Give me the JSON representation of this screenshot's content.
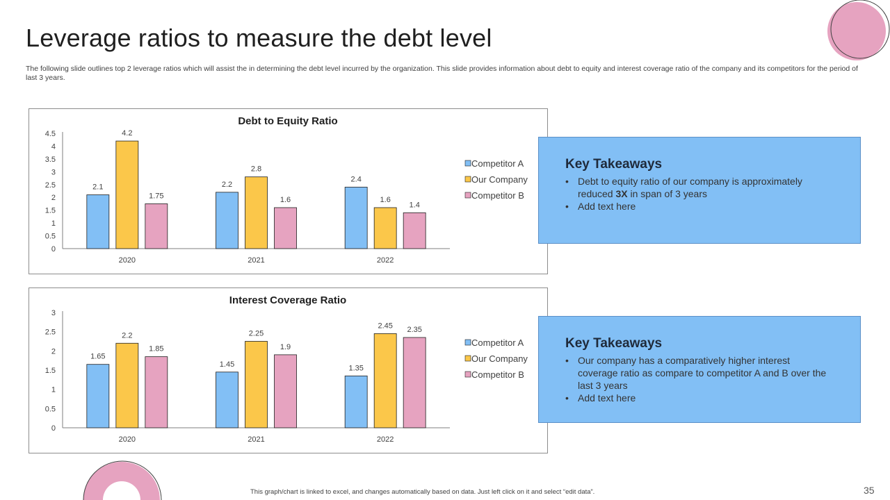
{
  "slide": {
    "title": "Leverage ratios to measure the debt level",
    "subtitle": "The following slide outlines top 2 leverage ratios which will assist the in determining the debt level incurred by the organization. This slide provides information about debt to equity and interest coverage ratio of the company and its competitors for the period of last 3 years.",
    "footer_note": "This graph/chart is linked to excel, and changes automatically based on data. Just left click on it and select “edit data”.",
    "page_number": "35"
  },
  "colors": {
    "competitor_a": "#82bff5",
    "our_company": "#fbc74a",
    "competitor_b": "#e6a3c0",
    "accent_pink": "#e6a3c0",
    "takeaway_bg": "#82bff5"
  },
  "chart_data": [
    {
      "type": "bar",
      "title": "Debt to Equity Ratio",
      "categories": [
        "2020",
        "2021",
        "2022"
      ],
      "series": [
        {
          "name": "Competitor A",
          "values": [
            2.1,
            2.2,
            2.4
          ]
        },
        {
          "name": "Our Company",
          "values": [
            4.2,
            2.8,
            1.6
          ]
        },
        {
          "name": "Competitor B",
          "values": [
            1.75,
            1.6,
            1.4
          ]
        }
      ],
      "ylim": [
        0,
        4.5
      ],
      "yticks": [
        "0",
        "0.5",
        "1",
        "1.5",
        "2",
        "2.5",
        "3",
        "3.5",
        "4",
        "4.5"
      ],
      "value_labels": [
        [
          "2.1",
          "2.2",
          "2.4"
        ],
        [
          "4.2",
          "2.8",
          "1.6"
        ],
        [
          "1.75",
          "1.6",
          "1.4"
        ]
      ],
      "legend": "right",
      "grid": false
    },
    {
      "type": "bar",
      "title": "Interest Coverage Ratio",
      "categories": [
        "2020",
        "2021",
        "2022"
      ],
      "series": [
        {
          "name": "Competitor A",
          "values": [
            1.65,
            1.45,
            1.35
          ]
        },
        {
          "name": "Our Company",
          "values": [
            2.2,
            2.25,
            2.45
          ]
        },
        {
          "name": "Competitor B",
          "values": [
            1.85,
            1.9,
            2.35
          ]
        }
      ],
      "ylim": [
        0,
        3
      ],
      "yticks": [
        "0",
        "0.5",
        "1",
        "1.5",
        "2",
        "2.5",
        "3"
      ],
      "value_labels": [
        [
          "1.65",
          "1.45",
          "1.35"
        ],
        [
          "2.2",
          "2.25",
          "2.45"
        ],
        [
          "1.85",
          "1.9",
          "2.35"
        ]
      ],
      "legend": "right",
      "grid": false
    }
  ],
  "takeaways": [
    {
      "heading": "Key Takeaways",
      "bullet_symbol": "•",
      "item1_before": "Debt to equity ratio of our company is approximately reduced ",
      "item1_bold": "3X",
      "item1_after": " in span of 3 years",
      "item2": "Add text here"
    },
    {
      "heading": "Key Takeaways",
      "bullet_symbol": "•",
      "item1": "Our company has a comparatively higher interest coverage ratio as compare to competitor A and B over the last 3 years",
      "item2": "Add text here"
    }
  ]
}
